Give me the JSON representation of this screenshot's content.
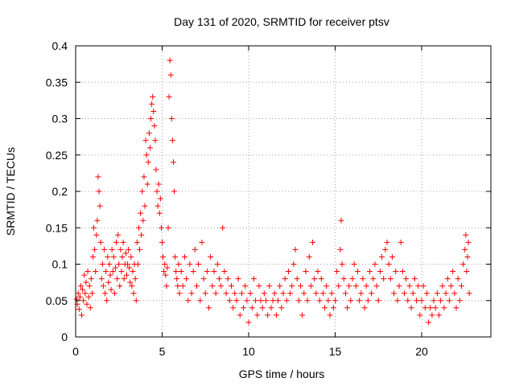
{
  "chart_data": {
    "type": "scatter",
    "title": "Day 131 of 2020, SRMTID for receiver ptsv",
    "xlabel": "GPS time / hours",
    "ylabel": "SRMTID / TECUs",
    "xlim": [
      0,
      24
    ],
    "ylim": [
      0,
      0.4
    ],
    "x_ticks": [
      0,
      5,
      10,
      15,
      20
    ],
    "x_tick_labels": [
      "0",
      "5",
      "10",
      "15",
      "20"
    ],
    "y_ticks": [
      0,
      0.05,
      0.1,
      0.15,
      0.2,
      0.25,
      0.3,
      0.35,
      0.4
    ],
    "y_tick_labels": [
      "0",
      "0.05",
      "0.1",
      "0.15",
      "0.2",
      "0.25",
      "0.3",
      "0.35",
      "0.4"
    ],
    "grid": true,
    "marker": "+",
    "series": [
      {
        "name": "ptsv",
        "color": "#ff0000",
        "points": [
          [
            0.05,
            0.052
          ],
          [
            0.1,
            0.045
          ],
          [
            0.15,
            0.06
          ],
          [
            0.2,
            0.038
          ],
          [
            0.25,
            0.055
          ],
          [
            0.3,
            0.07
          ],
          [
            0.35,
            0.03
          ],
          [
            0.4,
            0.065
          ],
          [
            0.45,
            0.05
          ],
          [
            0.5,
            0.085
          ],
          [
            0.55,
            0.06
          ],
          [
            0.6,
            0.075
          ],
          [
            0.65,
            0.045
          ],
          [
            0.7,
            0.09
          ],
          [
            0.75,
            0.055
          ],
          [
            0.8,
            0.07
          ],
          [
            0.85,
            0.04
          ],
          [
            0.9,
            0.08
          ],
          [
            0.95,
            0.06
          ],
          [
            1.0,
            0.11
          ],
          [
            1.05,
            0.15
          ],
          [
            1.1,
            0.12
          ],
          [
            1.15,
            0.09
          ],
          [
            1.2,
            0.14
          ],
          [
            1.25,
            0.16
          ],
          [
            1.3,
            0.22
          ],
          [
            1.35,
            0.2
          ],
          [
            1.4,
            0.18
          ],
          [
            1.45,
            0.13
          ],
          [
            1.5,
            0.08
          ],
          [
            1.55,
            0.1
          ],
          [
            1.6,
            0.07
          ],
          [
            1.65,
            0.12
          ],
          [
            1.7,
            0.06
          ],
          [
            1.75,
            0.09
          ],
          [
            1.8,
            0.05
          ],
          [
            1.85,
            0.11
          ],
          [
            1.9,
            0.075
          ],
          [
            1.95,
            0.1
          ],
          [
            2.0,
            0.085
          ],
          [
            2.05,
            0.065
          ],
          [
            2.1,
            0.12
          ],
          [
            2.15,
            0.09
          ],
          [
            2.2,
            0.11
          ],
          [
            2.25,
            0.06
          ],
          [
            2.3,
            0.095
          ],
          [
            2.35,
            0.13
          ],
          [
            2.4,
            0.08
          ],
          [
            2.45,
            0.14
          ],
          [
            2.5,
            0.1
          ],
          [
            2.55,
            0.07
          ],
          [
            2.6,
            0.12
          ],
          [
            2.65,
            0.09
          ],
          [
            2.7,
            0.11
          ],
          [
            2.75,
            0.13
          ],
          [
            2.8,
            0.08
          ],
          [
            2.85,
            0.1
          ],
          [
            2.9,
            0.115
          ],
          [
            2.95,
            0.085
          ],
          [
            3.0,
            0.1
          ],
          [
            3.05,
            0.12
          ],
          [
            3.1,
            0.095
          ],
          [
            3.15,
            0.075
          ],
          [
            3.2,
            0.11
          ],
          [
            3.25,
            0.07
          ],
          [
            3.3,
            0.09
          ],
          [
            3.35,
            0.06
          ],
          [
            3.4,
            0.1
          ],
          [
            3.45,
            0.08
          ],
          [
            3.5,
            0.05
          ],
          [
            3.55,
            0.13
          ],
          [
            3.6,
            0.1
          ],
          [
            3.65,
            0.15
          ],
          [
            3.7,
            0.12
          ],
          [
            3.75,
            0.17
          ],
          [
            3.8,
            0.14
          ],
          [
            3.85,
            0.2
          ],
          [
            3.9,
            0.16
          ],
          [
            3.95,
            0.22
          ],
          [
            4.0,
            0.18
          ],
          [
            4.05,
            0.27
          ],
          [
            4.1,
            0.25
          ],
          [
            4.15,
            0.21
          ],
          [
            4.2,
            0.24
          ],
          [
            4.25,
            0.28
          ],
          [
            4.3,
            0.26
          ],
          [
            4.35,
            0.3
          ],
          [
            4.4,
            0.32
          ],
          [
            4.45,
            0.33
          ],
          [
            4.5,
            0.31
          ],
          [
            4.55,
            0.29
          ],
          [
            4.6,
            0.27
          ],
          [
            4.65,
            0.23
          ],
          [
            4.7,
            0.2
          ],
          [
            4.75,
            0.18
          ],
          [
            4.8,
            0.21
          ],
          [
            4.85,
            0.17
          ],
          [
            4.9,
            0.19
          ],
          [
            4.95,
            0.15
          ],
          [
            5.0,
            0.13
          ],
          [
            5.05,
            0.11
          ],
          [
            5.1,
            0.09
          ],
          [
            5.15,
            0.1
          ],
          [
            5.2,
            0.085
          ],
          [
            5.25,
            0.07
          ],
          [
            5.3,
            0.095
          ],
          [
            5.35,
            0.15
          ],
          [
            5.4,
            0.33
          ],
          [
            5.45,
            0.38
          ],
          [
            5.5,
            0.36
          ],
          [
            5.55,
            0.3
          ],
          [
            5.6,
            0.27
          ],
          [
            5.65,
            0.24
          ],
          [
            5.7,
            0.2
          ],
          [
            5.75,
            0.11
          ],
          [
            5.8,
            0.09
          ],
          [
            5.85,
            0.08
          ],
          [
            5.9,
            0.07
          ],
          [
            5.95,
            0.1
          ],
          [
            6.0,
            0.06
          ],
          [
            6.1,
            0.09
          ],
          [
            6.2,
            0.07
          ],
          [
            6.3,
            0.11
          ],
          [
            6.4,
            0.08
          ],
          [
            6.5,
            0.05
          ],
          [
            6.6,
            0.1
          ],
          [
            6.7,
            0.06
          ],
          [
            6.8,
            0.09
          ],
          [
            6.9,
            0.12
          ],
          [
            7.0,
            0.07
          ],
          [
            7.1,
            0.1
          ],
          [
            7.2,
            0.05
          ],
          [
            7.3,
            0.13
          ],
          [
            7.4,
            0.08
          ],
          [
            7.5,
            0.06
          ],
          [
            7.6,
            0.09
          ],
          [
            7.7,
            0.04
          ],
          [
            7.8,
            0.11
          ],
          [
            7.9,
            0.07
          ],
          [
            8.0,
            0.09
          ],
          [
            8.1,
            0.06
          ],
          [
            8.2,
            0.1
          ],
          [
            8.3,
            0.08
          ],
          [
            8.4,
            0.07
          ],
          [
            8.5,
            0.15
          ],
          [
            8.6,
            0.09
          ],
          [
            8.7,
            0.06
          ],
          [
            8.8,
            0.08
          ],
          [
            8.9,
            0.05
          ],
          [
            9.0,
            0.07
          ],
          [
            9.1,
            0.04
          ],
          [
            9.2,
            0.06
          ],
          [
            9.3,
            0.05
          ],
          [
            9.4,
            0.08
          ],
          [
            9.5,
            0.03
          ],
          [
            9.6,
            0.06
          ],
          [
            9.7,
            0.04
          ],
          [
            9.8,
            0.07
          ],
          [
            9.9,
            0.05
          ],
          [
            10.0,
            0.02
          ],
          [
            10.1,
            0.06
          ],
          [
            10.2,
            0.04
          ],
          [
            10.3,
            0.08
          ],
          [
            10.4,
            0.05
          ],
          [
            10.5,
            0.03
          ],
          [
            10.6,
            0.07
          ],
          [
            10.7,
            0.05
          ],
          [
            10.8,
            0.04
          ],
          [
            10.9,
            0.06
          ],
          [
            11.0,
            0.05
          ],
          [
            11.1,
            0.03
          ],
          [
            11.2,
            0.07
          ],
          [
            11.3,
            0.04
          ],
          [
            11.4,
            0.05
          ],
          [
            11.5,
            0.06
          ],
          [
            11.6,
            0.03
          ],
          [
            11.7,
            0.05
          ],
          [
            11.8,
            0.07
          ],
          [
            11.9,
            0.04
          ],
          [
            12.0,
            0.06
          ],
          [
            12.1,
            0.08
          ],
          [
            12.2,
            0.05
          ],
          [
            12.3,
            0.09
          ],
          [
            12.4,
            0.06
          ],
          [
            12.5,
            0.07
          ],
          [
            12.6,
            0.1
          ],
          [
            12.7,
            0.12
          ],
          [
            12.8,
            0.08
          ],
          [
            12.9,
            0.05
          ],
          [
            13.0,
            0.07
          ],
          [
            13.1,
            0.03
          ],
          [
            13.2,
            0.06
          ],
          [
            13.3,
            0.09
          ],
          [
            13.4,
            0.05
          ],
          [
            13.5,
            0.11
          ],
          [
            13.6,
            0.07
          ],
          [
            13.7,
            0.13
          ],
          [
            13.8,
            0.08
          ],
          [
            13.9,
            0.06
          ],
          [
            14.0,
            0.09
          ],
          [
            14.1,
            0.05
          ],
          [
            14.2,
            0.08
          ],
          [
            14.3,
            0.06
          ],
          [
            14.4,
            0.04
          ],
          [
            14.5,
            0.07
          ],
          [
            14.6,
            0.05
          ],
          [
            14.7,
            0.03
          ],
          [
            14.8,
            0.06
          ],
          [
            14.9,
            0.04
          ],
          [
            15.0,
            0.05
          ],
          [
            15.1,
            0.09
          ],
          [
            15.2,
            0.07
          ],
          [
            15.3,
            0.12
          ],
          [
            15.35,
            0.16
          ],
          [
            15.4,
            0.1
          ],
          [
            15.5,
            0.08
          ],
          [
            15.6,
            0.06
          ],
          [
            15.7,
            0.04
          ],
          [
            15.8,
            0.07
          ],
          [
            15.9,
            0.05
          ],
          [
            16.0,
            0.08
          ],
          [
            16.1,
            0.1
          ],
          [
            16.2,
            0.07
          ],
          [
            16.3,
            0.09
          ],
          [
            16.4,
            0.05
          ],
          [
            16.5,
            0.06
          ],
          [
            16.6,
            0.08
          ],
          [
            16.7,
            0.04
          ],
          [
            16.8,
            0.07
          ],
          [
            16.9,
            0.05
          ],
          [
            17.0,
            0.09
          ],
          [
            17.1,
            0.06
          ],
          [
            17.2,
            0.08
          ],
          [
            17.3,
            0.1
          ],
          [
            17.4,
            0.07
          ],
          [
            17.5,
            0.05
          ],
          [
            17.6,
            0.09
          ],
          [
            17.7,
            0.11
          ],
          [
            17.8,
            0.08
          ],
          [
            17.9,
            0.12
          ],
          [
            18.0,
            0.13
          ],
          [
            18.1,
            0.1
          ],
          [
            18.2,
            0.08
          ],
          [
            18.3,
            0.11
          ],
          [
            18.4,
            0.06
          ],
          [
            18.5,
            0.09
          ],
          [
            18.6,
            0.05
          ],
          [
            18.7,
            0.07
          ],
          [
            18.8,
            0.13
          ],
          [
            18.9,
            0.09
          ],
          [
            19.0,
            0.06
          ],
          [
            19.1,
            0.08
          ],
          [
            19.2,
            0.05
          ],
          [
            19.3,
            0.07
          ],
          [
            19.4,
            0.04
          ],
          [
            19.5,
            0.06
          ],
          [
            19.6,
            0.08
          ],
          [
            19.7,
            0.05
          ],
          [
            19.8,
            0.07
          ],
          [
            19.9,
            0.03
          ],
          [
            20.0,
            0.05
          ],
          [
            20.1,
            0.07
          ],
          [
            20.2,
            0.04
          ],
          [
            20.3,
            0.06
          ],
          [
            20.4,
            0.02
          ],
          [
            20.5,
            0.04
          ],
          [
            20.6,
            0.03
          ],
          [
            20.7,
            0.05
          ],
          [
            20.8,
            0.04
          ],
          [
            20.9,
            0.06
          ],
          [
            21.0,
            0.03
          ],
          [
            21.1,
            0.05
          ],
          [
            21.2,
            0.07
          ],
          [
            21.3,
            0.04
          ],
          [
            21.4,
            0.06
          ],
          [
            21.5,
            0.08
          ],
          [
            21.6,
            0.05
          ],
          [
            21.7,
            0.07
          ],
          [
            21.8,
            0.09
          ],
          [
            21.9,
            0.06
          ],
          [
            22.0,
            0.04
          ],
          [
            22.1,
            0.08
          ],
          [
            22.2,
            0.05
          ],
          [
            22.3,
            0.07
          ],
          [
            22.4,
            0.1
          ],
          [
            22.5,
            0.12
          ],
          [
            22.55,
            0.14
          ],
          [
            22.6,
            0.09
          ],
          [
            22.65,
            0.11
          ],
          [
            22.7,
            0.13
          ],
          [
            22.75,
            0.06
          ]
        ]
      }
    ]
  }
}
